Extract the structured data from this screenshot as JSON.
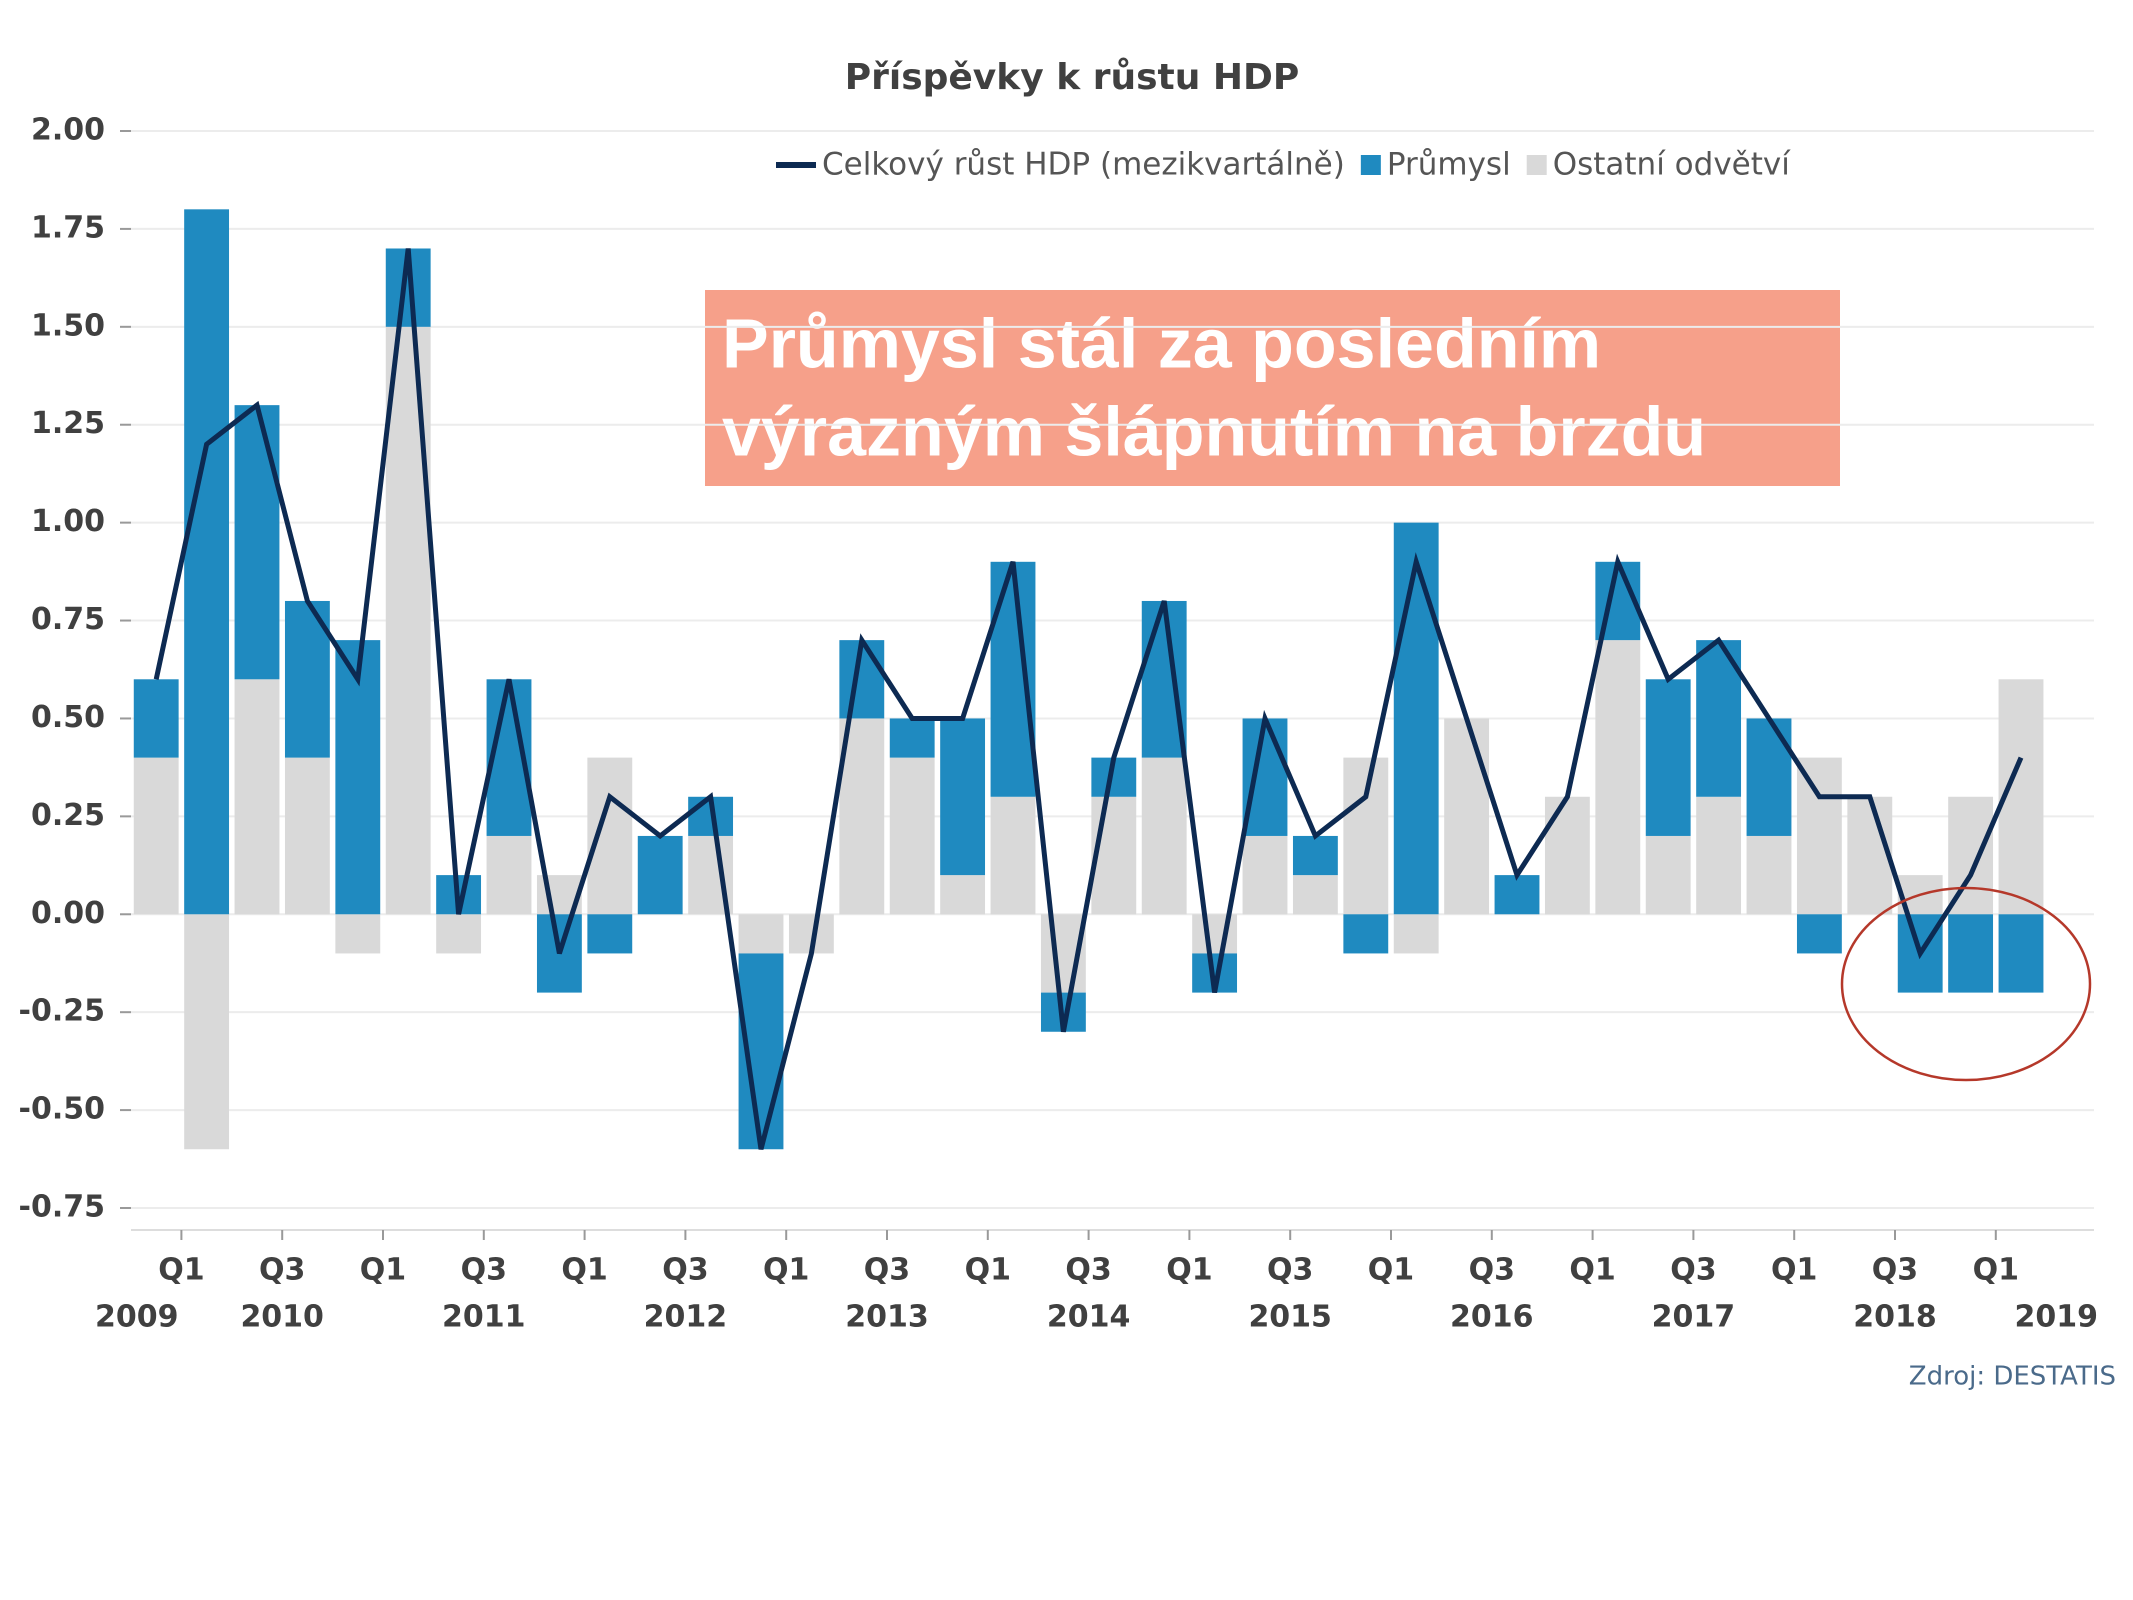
{
  "chart_data": {
    "type": "bar",
    "stacked": true,
    "title": "Příspěvky k růstu HDP",
    "categories": [
      "Q1",
      null,
      "Q3",
      null,
      "Q1",
      null,
      "Q3",
      null,
      "Q1",
      null,
      "Q3",
      null,
      "Q1",
      null,
      "Q3",
      null,
      "Q1",
      null,
      "Q3",
      null,
      "Q1",
      null,
      "Q3",
      null,
      "Q1",
      null,
      "Q3",
      null,
      "Q1",
      null,
      "Q3",
      null,
      "Q1",
      null,
      "Q3",
      null,
      "Q1",
      null
    ],
    "years": [
      "2009",
      "2010",
      "2011",
      "2012",
      "2013",
      "2014",
      "2015",
      "2016",
      "2017",
      "2018",
      "2019"
    ],
    "series": [
      {
        "name": "Ostatní odvětví",
        "color": "#d9d9d9",
        "values": [
          0.4,
          -0.6,
          0.6,
          0.4,
          -0.1,
          1.5,
          -0.1,
          0.2,
          0.1,
          0.4,
          0,
          0.2,
          -0.1,
          -0.1,
          0.5,
          0.4,
          0.1,
          0.3,
          -0.2,
          0.3,
          0.4,
          -0.1,
          0.2,
          0.1,
          0.4,
          -0.1,
          0.5,
          0,
          0.3,
          0.7,
          0.2,
          0.3,
          0.2,
          0.4,
          0.3,
          0.1,
          0.3,
          0.6
        ]
      },
      {
        "name": "Průmysl",
        "color": "#1f8ac0",
        "values": [
          0.2,
          1.8,
          0.7,
          0.4,
          0.7,
          0.2,
          0.1,
          0.4,
          -0.2,
          -0.1,
          0.2,
          0.1,
          -0.5,
          0,
          0.2,
          0.1,
          0.4,
          0.6,
          -0.1,
          0.1,
          0.4,
          -0.1,
          0.3,
          0.1,
          -0.1,
          1.0,
          0,
          0.1,
          0,
          0.2,
          0.4,
          0.4,
          0.3,
          -0.1,
          0,
          -0.2,
          -0.2,
          -0.2
        ]
      },
      {
        "name": "Celkový růst HDP (mezikvartálně)",
        "color": "#0d2a52",
        "type": "line",
        "values": [
          0.6,
          1.2,
          1.3,
          0.8,
          0.6,
          1.7,
          0.0,
          0.6,
          -0.1,
          0.3,
          0.2,
          0.3,
          -0.6,
          -0.1,
          0.7,
          0.5,
          0.5,
          0.9,
          -0.3,
          0.4,
          0.8,
          -0.2,
          0.5,
          0.2,
          0.3,
          0.9,
          0.5,
          0.1,
          0.3,
          0.9,
          0.6,
          0.7,
          0.5,
          0.3,
          0.3,
          -0.1,
          0.1,
          0.4
        ]
      }
    ],
    "ylim": [
      -0.75,
      2.0
    ],
    "yticks": [
      {
        "value": -0.75,
        "label": "-0.75"
      },
      {
        "value": -0.5,
        "label": "-0.50"
      },
      {
        "value": -0.25,
        "label": "-0.25"
      },
      {
        "value": 0,
        "label": "0.00"
      },
      {
        "value": 0.25,
        "label": "0.25"
      },
      {
        "value": 0.5,
        "label": "0.50"
      },
      {
        "value": 0.75,
        "label": "0.75"
      },
      {
        "value": 1,
        "label": "1.00"
      },
      {
        "value": 1.25,
        "label": "1.25"
      },
      {
        "value": 1.5,
        "label": "1.50"
      },
      {
        "value": 1.75,
        "label": "1.75"
      },
      {
        "value": 2,
        "label": "2.00"
      }
    ],
    "grid": true,
    "legend": "top",
    "annotation": [
      "Průmysl stál za posledním",
      "výrazným šlápnutím na brzdu"
    ],
    "source": "Zdroj: DESTATIS"
  }
}
